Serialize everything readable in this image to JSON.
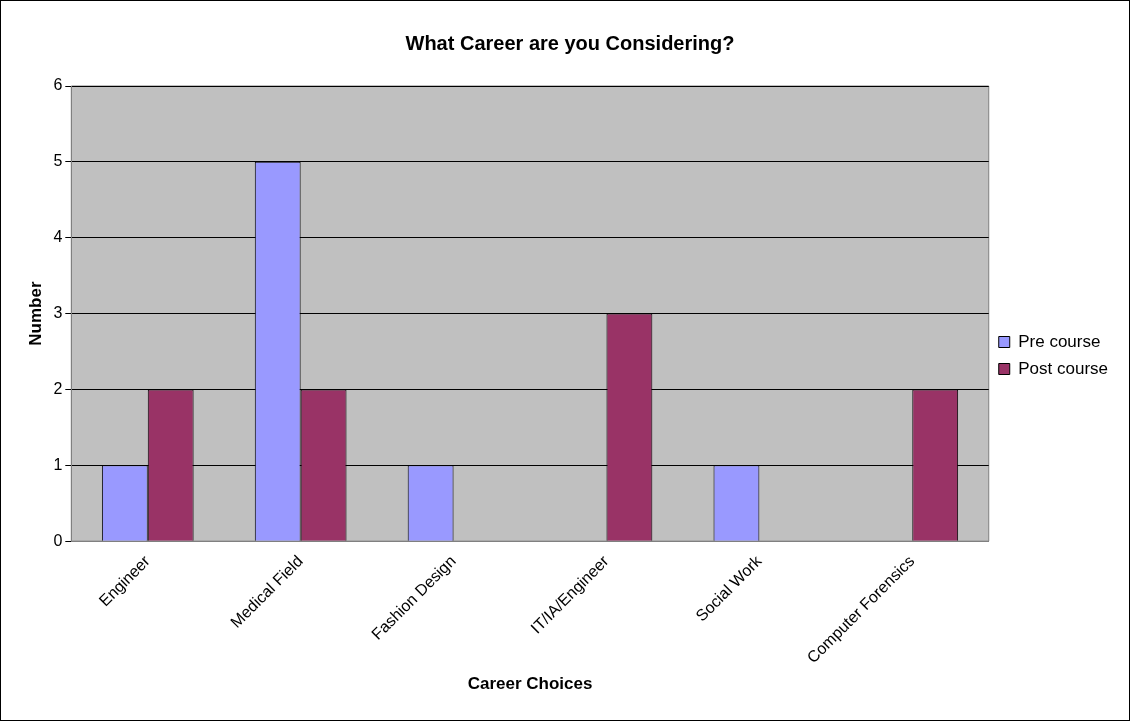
{
  "chart_data": {
    "type": "bar",
    "title": "What Career are you Considering?",
    "xlabel": "Career Choices",
    "ylabel": "Number",
    "categories": [
      "Engineer",
      "Medical Field",
      "Fashion Design",
      "IT/IA/Engineer",
      "Social Work",
      "Computer Forensics"
    ],
    "series": [
      {
        "name": "Pre course",
        "color": "#9999ff",
        "values": [
          1,
          5,
          1,
          0,
          1,
          0
        ]
      },
      {
        "name": "Post course",
        "color": "#993366",
        "values": [
          2,
          2,
          0,
          3,
          0,
          2
        ]
      }
    ],
    "ylim": [
      0,
      6
    ],
    "yticks": [
      0,
      1,
      2,
      3,
      4,
      5,
      6
    ],
    "grid": "y",
    "legend": "right"
  }
}
